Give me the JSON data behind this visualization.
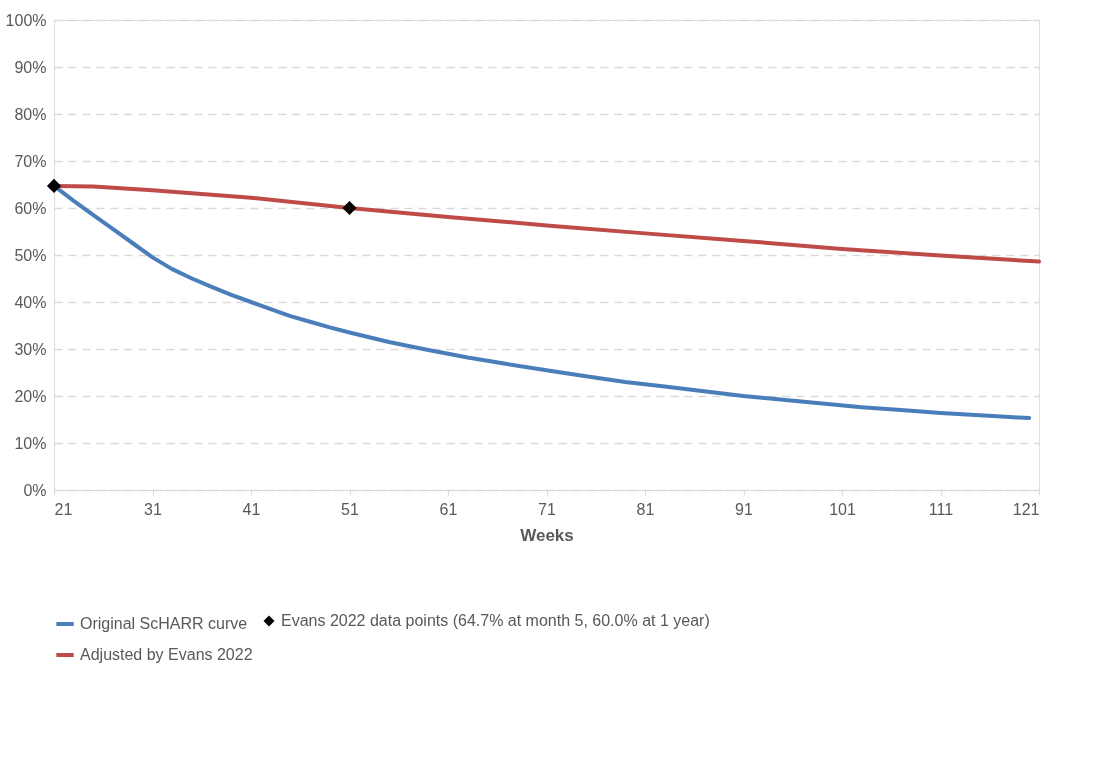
{
  "chart_data": {
    "type": "line",
    "xlabel": "Weeks",
    "x": [
      21,
      23,
      25,
      27,
      29,
      31,
      33,
      35,
      37,
      39,
      41,
      43,
      45,
      47,
      49,
      51,
      55,
      59,
      63,
      67,
      71,
      75,
      79,
      83,
      87,
      91,
      95,
      99,
      103,
      107,
      111,
      115,
      119,
      120
    ],
    "series": [
      {
        "name": "Original ScHARR curve",
        "color": "#4a7ebb",
        "values": [
          64.7,
          61.5,
          58.5,
          55.5,
          52.5,
          49.5,
          47,
          45,
          43.2,
          41.5,
          40,
          38.5,
          37,
          35.8,
          34.6,
          33.5,
          31.5,
          29.8,
          28.2,
          26.8,
          25.5,
          24.2,
          23,
          22,
          21,
          20,
          19.2,
          18.4,
          17.6,
          17,
          16.4,
          15.9,
          15.4,
          15.3
        ]
      },
      {
        "name": "Adjusted by Evans 2022",
        "color": "#be4b48",
        "x": [
          21,
          25,
          31,
          41,
          51,
          61,
          71,
          81,
          91,
          101,
          111,
          121
        ],
        "values": [
          64.7,
          64.6,
          63.8,
          62.2,
          60.0,
          58.1,
          56.3,
          54.6,
          53,
          51.3,
          49.9,
          48.6
        ]
      },
      {
        "name": "Evans 2022 data points (64.7% at month 5, 60.0% at 1 year)",
        "color": "#000000",
        "type": "scatter",
        "marker": "diamond",
        "x": [
          21,
          51
        ],
        "values": [
          64.7,
          60.0
        ]
      }
    ],
    "xlim": [
      21,
      121
    ],
    "xticks": [
      21,
      31,
      41,
      51,
      61,
      71,
      81,
      91,
      101,
      111,
      121
    ],
    "ylim": [
      0,
      100
    ],
    "yticks": [
      {
        "value": 0,
        "label": "0%"
      },
      {
        "value": 10,
        "label": "10%"
      },
      {
        "value": 20,
        "label": "20%"
      },
      {
        "value": 30,
        "label": "30%"
      },
      {
        "value": 40,
        "label": "40%"
      },
      {
        "value": 50,
        "label": "50%"
      },
      {
        "value": 60,
        "label": "60%"
      },
      {
        "value": 70,
        "label": "70%"
      },
      {
        "value": 80,
        "label": "80%"
      },
      {
        "value": 90,
        "label": "90%"
      },
      {
        "value": 100,
        "label": "100%"
      }
    ],
    "grid": "y",
    "legend": "bottom"
  }
}
